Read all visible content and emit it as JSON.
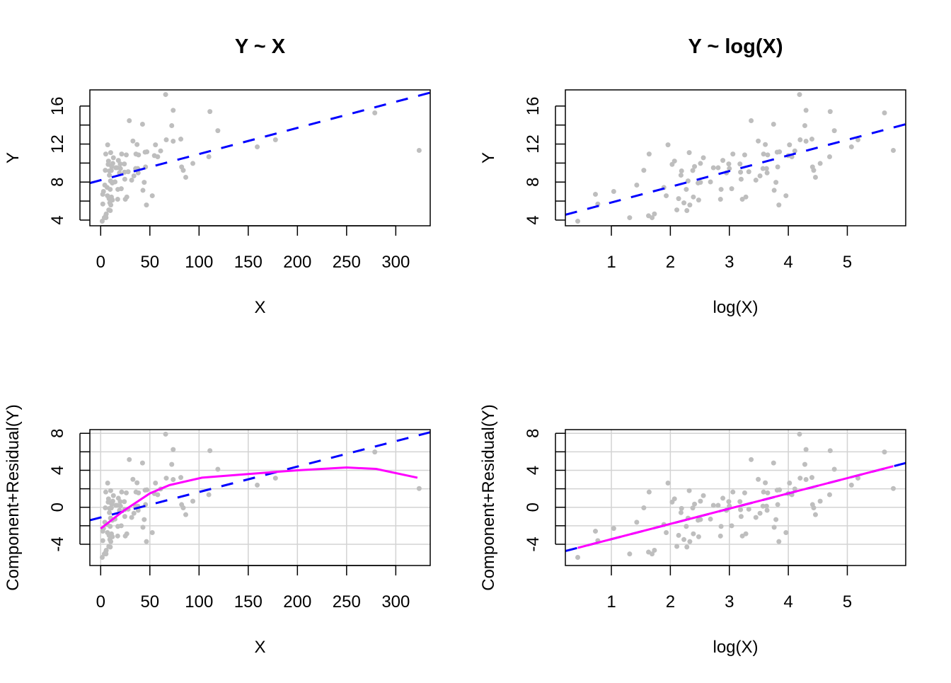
{
  "chart_data": [
    {
      "type": "scatter",
      "title": "Y ~ X",
      "xlabel": "X",
      "ylabel": "Y",
      "xlim": [
        -11,
        335
      ],
      "ylim": [
        3.4,
        17.7
      ],
      "xticks": [
        "0",
        "50",
        "100",
        "150",
        "200",
        "250",
        "300"
      ],
      "yticks": [
        "4",
        "8",
        "12",
        "16"
      ],
      "fit_line": {
        "intercept": 8.2,
        "slope": 0.0275,
        "color": "#0000ff",
        "style": "dashed"
      },
      "x_var": "X",
      "y_var": "Y",
      "grid": false
    },
    {
      "type": "scatter",
      "title": "Y ~ log(X)",
      "xlabel": "log(X)",
      "ylabel": "Y",
      "xlim": [
        0.22,
        5.99
      ],
      "ylim": [
        3.4,
        17.7
      ],
      "xticks": [
        "1",
        "2",
        "3",
        "4",
        "5"
      ],
      "yticks": [
        "4",
        "8",
        "12",
        "16"
      ],
      "fit_line": {
        "intercept": 4.2,
        "slope": 1.65,
        "color": "#0000ff",
        "style": "dashed"
      },
      "x_var": "logX",
      "y_var": "Y",
      "grid": false
    },
    {
      "type": "scatter",
      "title": "",
      "xlabel": "X",
      "ylabel": "Component+Residual(Y)",
      "xlim": [
        -11,
        335
      ],
      "ylim": [
        -6.3,
        8.4
      ],
      "xticks": [
        "0",
        "50",
        "100",
        "150",
        "200",
        "250",
        "300"
      ],
      "yticks": [
        "-4",
        "0",
        "4",
        "8"
      ],
      "fit_line": {
        "intercept": -1.1,
        "slope": 0.0275,
        "color": "#0000ff",
        "style": "dashed"
      },
      "smooth": {
        "color": "#ff00ff",
        "x": [
          0,
          23,
          50,
          70,
          103,
          150,
          200,
          250,
          280,
          322
        ],
        "y": [
          -2.3,
          -0.4,
          1.5,
          2.4,
          3.2,
          3.6,
          4.0,
          4.3,
          4.15,
          3.2
        ]
      },
      "x_var": "X",
      "y_var": "CR",
      "grid": true
    },
    {
      "type": "scatter",
      "title": "",
      "xlabel": "log(X)",
      "ylabel": "Component+Residual(Y)",
      "xlim": [
        0.22,
        5.99
      ],
      "ylim": [
        -6.3,
        8.4
      ],
      "xticks": [
        "1",
        "2",
        "3",
        "4",
        "5"
      ],
      "yticks": [
        "-4",
        "0",
        "4",
        "8"
      ],
      "fit_line": {
        "intercept": -5.1,
        "slope": 1.65,
        "color": "#0000ff",
        "style": "dashed"
      },
      "smooth": {
        "color": "#ff00ff",
        "x": [
          0.43,
          5.78
        ],
        "y": [
          -4.39,
          4.44
        ]
      },
      "x_var": "logX",
      "y_var": "CR",
      "grid": true
    }
  ],
  "cr_offset": 9.3,
  "point_color": "#bebebe",
  "points_logx_y": [
    [
      0.43,
      3.88
    ],
    [
      0.73,
      6.71
    ],
    [
      0.77,
      5.69
    ],
    [
      1.04,
      7.01
    ],
    [
      1.31,
      4.25
    ],
    [
      1.43,
      7.68
    ],
    [
      1.55,
      9.24
    ],
    [
      1.64,
      10.95
    ],
    [
      1.63,
      4.45
    ],
    [
      1.69,
      4.25
    ],
    [
      1.73,
      4.65
    ],
    [
      1.89,
      7.43
    ],
    [
      1.93,
      6.56
    ],
    [
      1.96,
      11.92
    ],
    [
      2.03,
      9.86
    ],
    [
      2.07,
      10.21
    ],
    [
      2.11,
      5.07
    ],
    [
      2.14,
      6.26
    ],
    [
      2.18,
      8.72
    ],
    [
      2.19,
      9.17
    ],
    [
      2.23,
      5.81
    ],
    [
      2.27,
      7.23
    ],
    [
      2.28,
      5.0
    ],
    [
      2.3,
      8.12
    ],
    [
      2.32,
      11.1
    ],
    [
      2.33,
      5.59
    ],
    [
      2.38,
      9.22
    ],
    [
      2.39,
      6.43
    ],
    [
      2.41,
      9.64
    ],
    [
      2.47,
      7.9
    ],
    [
      2.48,
      6.11
    ],
    [
      2.51,
      9.96
    ],
    [
      2.51,
      7.97
    ],
    [
      2.56,
      10.56
    ],
    [
      2.68,
      8.02
    ],
    [
      2.73,
      9.51
    ],
    [
      2.81,
      9.51
    ],
    [
      2.85,
      6.19
    ],
    [
      2.86,
      7.23
    ],
    [
      2.89,
      10.28
    ],
    [
      2.95,
      8.97
    ],
    [
      2.99,
      9.91
    ],
    [
      3.0,
      9.42
    ],
    [
      3.04,
      7.3
    ],
    [
      3.06,
      10.95
    ],
    [
      3.18,
      9.91
    ],
    [
      3.19,
      9.04
    ],
    [
      3.2,
      8.3
    ],
    [
      3.22,
      6.19
    ],
    [
      3.26,
      10.86
    ],
    [
      3.28,
      6.43
    ],
    [
      3.33,
      9.09
    ],
    [
      3.37,
      14.46
    ],
    [
      3.45,
      8.2
    ],
    [
      3.49,
      12.32
    ],
    [
      3.52,
      8.65
    ],
    [
      3.57,
      9.42
    ],
    [
      3.58,
      10.95
    ],
    [
      3.61,
      11.95
    ],
    [
      3.63,
      9.42
    ],
    [
      3.64,
      8.97
    ],
    [
      3.65,
      10.86
    ],
    [
      3.75,
      14.09
    ],
    [
      3.76,
      7.13
    ],
    [
      3.79,
      7.97
    ],
    [
      3.81,
      11.15
    ],
    [
      3.82,
      9.59
    ],
    [
      3.84,
      5.59
    ],
    [
      3.85,
      11.18
    ],
    [
      3.96,
      6.56
    ],
    [
      4.0,
      10.78
    ],
    [
      4.02,
      11.92
    ],
    [
      4.06,
      10.66
    ],
    [
      4.11,
      11.28
    ],
    [
      4.19,
      17.21
    ],
    [
      4.2,
      12.45
    ],
    [
      4.28,
      13.94
    ],
    [
      4.3,
      15.55
    ],
    [
      4.3,
      12.3
    ],
    [
      4.4,
      12.52
    ],
    [
      4.41,
      9.59
    ],
    [
      4.43,
      9.24
    ],
    [
      4.46,
      8.5
    ],
    [
      4.54,
      9.96
    ],
    [
      4.7,
      10.66
    ],
    [
      4.71,
      15.42
    ],
    [
      4.78,
      13.41
    ],
    [
      5.07,
      11.7
    ],
    [
      5.18,
      12.45
    ],
    [
      5.63,
      15.28
    ],
    [
      5.78,
      11.33
    ]
  ]
}
